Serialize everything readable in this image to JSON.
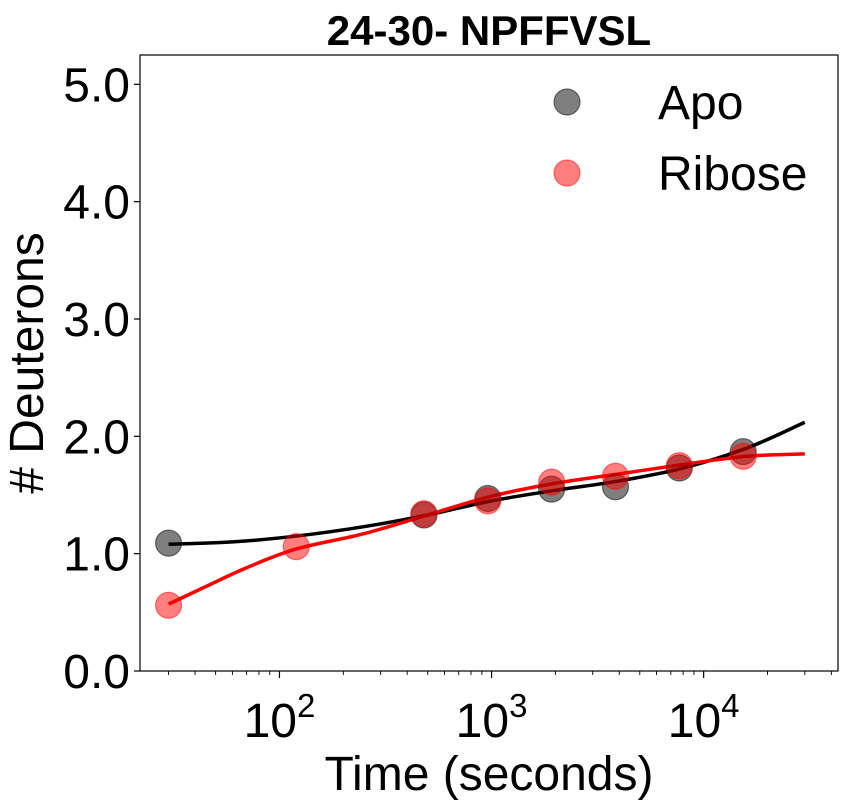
{
  "chart_data": {
    "type": "scatter",
    "title": "24-30- NPFFVSL",
    "xlabel": "Time (seconds)",
    "ylabel": "# Deuterons",
    "xscale": "log",
    "xlim": [
      22,
      43000
    ],
    "ylim": [
      0,
      5.25
    ],
    "grid": false,
    "legend_position": "top-right",
    "x_ticks": [
      {
        "value": 100,
        "base": "10",
        "exp": "2"
      },
      {
        "value": 1000,
        "base": "10",
        "exp": "3"
      },
      {
        "value": 10000,
        "base": "10",
        "exp": "4"
      }
    ],
    "y_ticks": [
      {
        "value": 0,
        "label": "0.0"
      },
      {
        "value": 1,
        "label": "1.0"
      },
      {
        "value": 2,
        "label": "2.0"
      },
      {
        "value": 3,
        "label": "3.0"
      },
      {
        "value": 4,
        "label": "4.0"
      },
      {
        "value": 5,
        "label": "5.0"
      }
    ],
    "series": [
      {
        "name": "Apo",
        "marker_color": "#000000",
        "marker_opacity": 0.5,
        "line_color": "#000000",
        "points": [
          {
            "x": 30,
            "y": 1.09
          },
          {
            "x": 480,
            "y": 1.33
          },
          {
            "x": 960,
            "y": 1.47
          },
          {
            "x": 1920,
            "y": 1.55
          },
          {
            "x": 3840,
            "y": 1.57
          },
          {
            "x": 7680,
            "y": 1.73
          },
          {
            "x": 15360,
            "y": 1.87
          }
        ],
        "fit": [
          {
            "x": 30,
            "y": 1.08
          },
          {
            "x": 60,
            "y": 1.1
          },
          {
            "x": 120,
            "y": 1.15
          },
          {
            "x": 250,
            "y": 1.23
          },
          {
            "x": 500,
            "y": 1.33
          },
          {
            "x": 1000,
            "y": 1.45
          },
          {
            "x": 2000,
            "y": 1.54
          },
          {
            "x": 4000,
            "y": 1.62
          },
          {
            "x": 8000,
            "y": 1.73
          },
          {
            "x": 16000,
            "y": 1.9
          },
          {
            "x": 30000,
            "y": 2.12
          }
        ]
      },
      {
        "name": "Ribose",
        "marker_color": "#ff0000",
        "marker_opacity": 0.5,
        "line_color": "#ff0000",
        "points": [
          {
            "x": 30,
            "y": 0.56
          },
          {
            "x": 120,
            "y": 1.06
          },
          {
            "x": 480,
            "y": 1.34
          },
          {
            "x": 960,
            "y": 1.45
          },
          {
            "x": 1920,
            "y": 1.61
          },
          {
            "x": 3840,
            "y": 1.66
          },
          {
            "x": 7680,
            "y": 1.75
          },
          {
            "x": 15360,
            "y": 1.83
          }
        ],
        "fit": [
          {
            "x": 30,
            "y": 0.57
          },
          {
            "x": 45,
            "y": 0.72
          },
          {
            "x": 70,
            "y": 0.88
          },
          {
            "x": 120,
            "y": 1.04
          },
          {
            "x": 250,
            "y": 1.17
          },
          {
            "x": 500,
            "y": 1.33
          },
          {
            "x": 1000,
            "y": 1.49
          },
          {
            "x": 2000,
            "y": 1.6
          },
          {
            "x": 4000,
            "y": 1.68
          },
          {
            "x": 8000,
            "y": 1.76
          },
          {
            "x": 16000,
            "y": 1.83
          },
          {
            "x": 30000,
            "y": 1.85
          }
        ]
      }
    ]
  }
}
